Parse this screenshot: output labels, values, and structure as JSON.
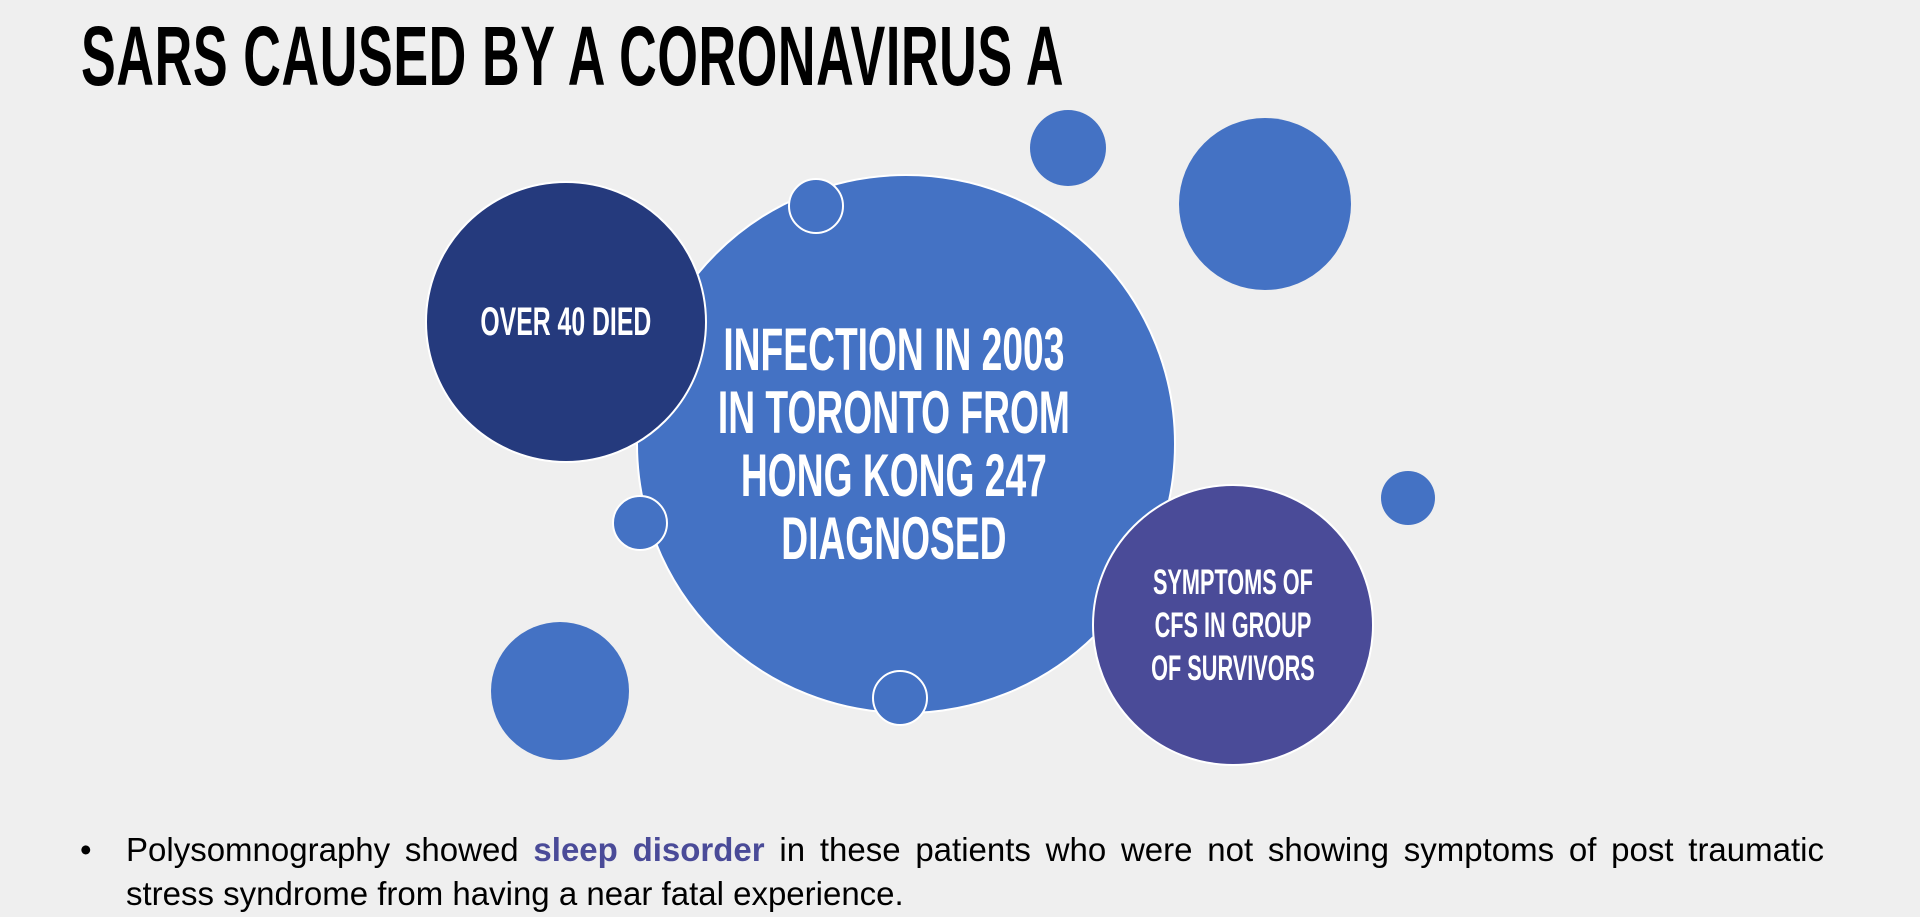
{
  "slide": {
    "title": "SARS CAUSED BY A CORONAVIRUS A",
    "circles": {
      "center": {
        "line1": "INFECTION IN 2003",
        "line2": "IN TORONTO FROM",
        "line3": "HONG KONG 247",
        "line4": "DIAGNOSED"
      },
      "left": {
        "text": "OVER 40 DIED"
      },
      "right": {
        "line1": "SYMPTOMS OF",
        "line2": "CFS IN GROUP",
        "line3": "OF SURVIVORS"
      }
    },
    "bullet": {
      "before": "Polysomnography showed ",
      "highlight": "sleep disorder",
      "after": " in these patients who were not showing symptoms of post traumatic stress syndrome from having a near fatal experience."
    }
  },
  "colors": {
    "background": "#efefef",
    "blue": "#4472c4",
    "navy": "#253a7d",
    "purple": "#4a4b98",
    "highlight": "#4a4b98"
  }
}
